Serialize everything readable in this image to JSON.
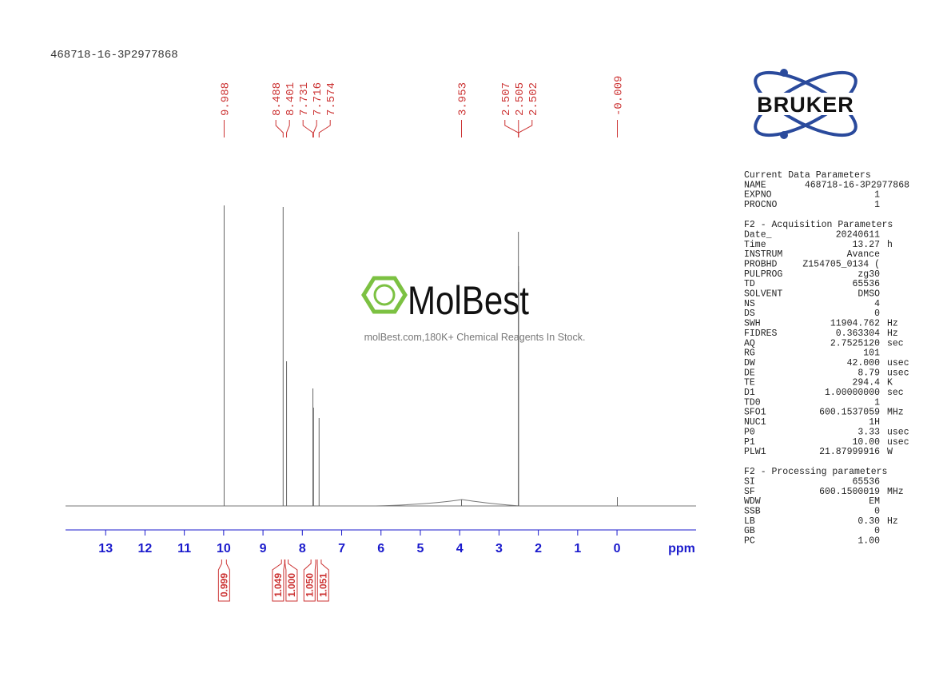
{
  "chart_data": {
    "type": "nmr",
    "title": "468718-16-3P2977868",
    "watermark": {
      "brand": "MolBest",
      "tagline": "molBest.com,180K+ Chemical Reagents In Stock."
    },
    "logo": "BRUKER",
    "peaks": {
      "x": [
        9.988,
        8.488,
        8.401,
        7.731,
        7.716,
        7.574,
        3.953,
        2.507,
        2.505,
        2.502,
        -0.009
      ],
      "values": [
        376,
        374,
        181,
        147,
        123,
        110,
        8,
        343,
        300,
        280,
        11
      ],
      "color": "#666666",
      "label_color": "#cc3333"
    },
    "ylim": [
      0,
      380
    ],
    "integrals": {
      "ranges": [
        [
          10.05,
          9.93
        ],
        [
          8.53,
          8.45
        ],
        [
          8.44,
          8.36
        ],
        [
          7.78,
          7.66
        ],
        [
          7.62,
          7.52
        ]
      ],
      "values": [
        0.999,
        1.049,
        1,
        1.05,
        1.051
      ],
      "value_labels": [
        "0.999",
        "1.049",
        "1.000",
        "1.050",
        "1.051"
      ]
    },
    "xlim": [
      14.02,
      -2.01
    ],
    "xticks": [
      13,
      12,
      11,
      10,
      9,
      8,
      7,
      6,
      5,
      4,
      3,
      2,
      1,
      0
    ],
    "xlabel": "ppm",
    "axis_color": "#1a1acc",
    "parameters": [
      {
        "heading": "Current Data Parameters",
        "rows": [
          [
            "NAME",
            "468718-16-3P2977868"
          ],
          [
            "EXPNO",
            "1"
          ],
          [
            "PROCNO",
            "1"
          ]
        ]
      },
      {
        "heading": "F2 - Acquisition Parameters",
        "rows": [
          [
            "Date_",
            "20240611"
          ],
          [
            "Time",
            "13.27",
            "h"
          ],
          [
            "INSTRUM",
            "Avance"
          ],
          [
            "PROBHD",
            "Z154705_0134 ("
          ],
          [
            "PULPROG",
            "zg30"
          ],
          [
            "TD",
            "65536"
          ],
          [
            "SOLVENT",
            "DMSO"
          ],
          [
            "NS",
            "4"
          ],
          [
            "DS",
            "0"
          ],
          [
            "SWH",
            "11904.762",
            "Hz"
          ],
          [
            "FIDRES",
            "0.363304",
            "Hz"
          ],
          [
            "AQ",
            "2.7525120",
            "sec"
          ],
          [
            "RG",
            "101"
          ],
          [
            "DW",
            "42.000",
            "usec"
          ],
          [
            "DE",
            "8.79",
            "usec"
          ],
          [
            "TE",
            "294.4",
            "K"
          ],
          [
            "D1",
            "1.00000000",
            "sec"
          ],
          [
            "TD0",
            "1"
          ],
          [
            "SFO1",
            "600.1537059",
            "MHz"
          ],
          [
            "NUC1",
            "1H"
          ],
          [
            "P0",
            "3.33",
            "usec"
          ],
          [
            "P1",
            "10.00",
            "usec"
          ],
          [
            "PLW1",
            "21.87999916",
            "W"
          ]
        ]
      },
      {
        "heading": "F2 - Processing parameters",
        "rows": [
          [
            "SI",
            "65536"
          ],
          [
            "SF",
            "600.1500019",
            "MHz"
          ],
          [
            "WDW",
            "EM"
          ],
          [
            "SSB",
            "0"
          ],
          [
            "LB",
            "0.30",
            "Hz"
          ],
          [
            "GB",
            "0"
          ],
          [
            "PC",
            "1.00"
          ]
        ]
      }
    ]
  }
}
